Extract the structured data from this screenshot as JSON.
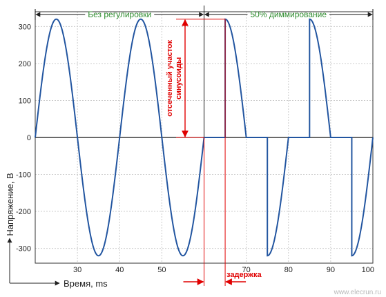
{
  "chart_data": {
    "type": "line",
    "ylabel": "Напряжение, В",
    "xlabel": "Время, ms",
    "xlim": [
      20,
      100
    ],
    "ylim": [
      -340,
      340
    ],
    "x_ticks": [
      30,
      40,
      50,
      60,
      70,
      80,
      90,
      100
    ],
    "x_tick_labels": [
      "30",
      "40",
      "50",
      "",
      "70",
      "80",
      "90",
      "100"
    ],
    "y_ticks": [
      300,
      200,
      100,
      0,
      -100,
      -200,
      -300
    ],
    "grid": true,
    "series": [
      {
        "amplitude": 320,
        "frequency_hz": 50,
        "color": "#2255a0",
        "segments": [
          {
            "x_start": 20,
            "x_end": 60,
            "mode": "full-sine"
          },
          {
            "x_start": 60,
            "x_end": 100,
            "mode": "dimmed-50-percent"
          }
        ]
      }
    ],
    "segments": [
      {
        "label": "Без регулировки",
        "x_start": 20,
        "x_end": 60
      },
      {
        "label": "50% диммирование",
        "x_start": 60,
        "x_end": 100
      }
    ],
    "annotations": {
      "cut_label_line1": "отсеченный участок",
      "cut_label_line2": "синусоиды",
      "delay_label": "задержка",
      "delay_x_start": 60,
      "delay_x_end": 65,
      "cut_y_top": 320,
      "cut_y_bottom": 0
    },
    "colors": {
      "segment_label": "#2e8b2e",
      "annotation": "#e00000",
      "grid": "#cccccc",
      "line": "#2255a0"
    }
  },
  "watermark": "www.elecrun.ru"
}
